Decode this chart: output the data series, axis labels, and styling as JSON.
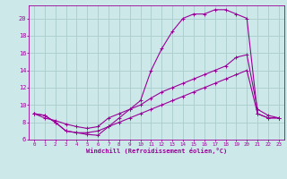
{
  "xlabel": "Windchill (Refroidissement éolien,°C)",
  "ylabel": "",
  "xlim": [
    -0.5,
    23.5
  ],
  "ylim": [
    6,
    21.5
  ],
  "yticks": [
    6,
    8,
    10,
    12,
    14,
    16,
    18,
    20
  ],
  "xticks": [
    0,
    1,
    2,
    3,
    4,
    5,
    6,
    7,
    8,
    9,
    10,
    11,
    12,
    13,
    14,
    15,
    16,
    17,
    18,
    19,
    20,
    21,
    22,
    23
  ],
  "background_color": "#cce8e8",
  "grid_color": "#aacccc",
  "line_color": "#990099",
  "lines": [
    {
      "x": [
        0,
        1,
        2,
        3,
        4,
        5,
        6,
        7,
        8,
        9,
        10,
        11,
        12,
        13,
        14,
        15,
        16,
        17,
        18,
        19,
        20,
        21,
        22,
        23
      ],
      "y": [
        9.0,
        8.8,
        8.0,
        7.0,
        6.8,
        6.8,
        7.0,
        7.5,
        8.0,
        8.5,
        9.0,
        9.5,
        10.0,
        10.5,
        11.0,
        11.5,
        12.0,
        12.5,
        13.0,
        13.5,
        14.0,
        9.0,
        8.5,
        8.5
      ]
    },
    {
      "x": [
        0,
        1,
        2,
        3,
        4,
        5,
        6,
        7,
        8,
        9,
        10,
        11,
        12,
        13,
        14,
        15,
        16,
        17,
        18,
        19,
        20,
        21,
        22,
        23
      ],
      "y": [
        9.0,
        8.5,
        8.2,
        7.8,
        7.5,
        7.3,
        7.5,
        8.5,
        9.0,
        9.5,
        10.0,
        10.8,
        11.5,
        12.0,
        12.5,
        13.0,
        13.5,
        14.0,
        14.5,
        15.5,
        15.8,
        9.5,
        8.8,
        8.5
      ]
    },
    {
      "x": [
        0,
        1,
        2,
        3,
        4,
        5,
        6,
        7,
        8,
        9,
        10,
        11,
        12,
        13,
        14,
        15,
        16,
        17,
        18,
        19,
        20,
        21,
        22,
        23
      ],
      "y": [
        9.0,
        8.8,
        8.0,
        7.0,
        6.8,
        6.6,
        6.5,
        7.5,
        8.5,
        9.5,
        10.5,
        14.0,
        16.5,
        18.5,
        20.0,
        20.5,
        20.5,
        21.0,
        21.0,
        20.5,
        20.0,
        9.0,
        8.5,
        8.5
      ]
    }
  ]
}
